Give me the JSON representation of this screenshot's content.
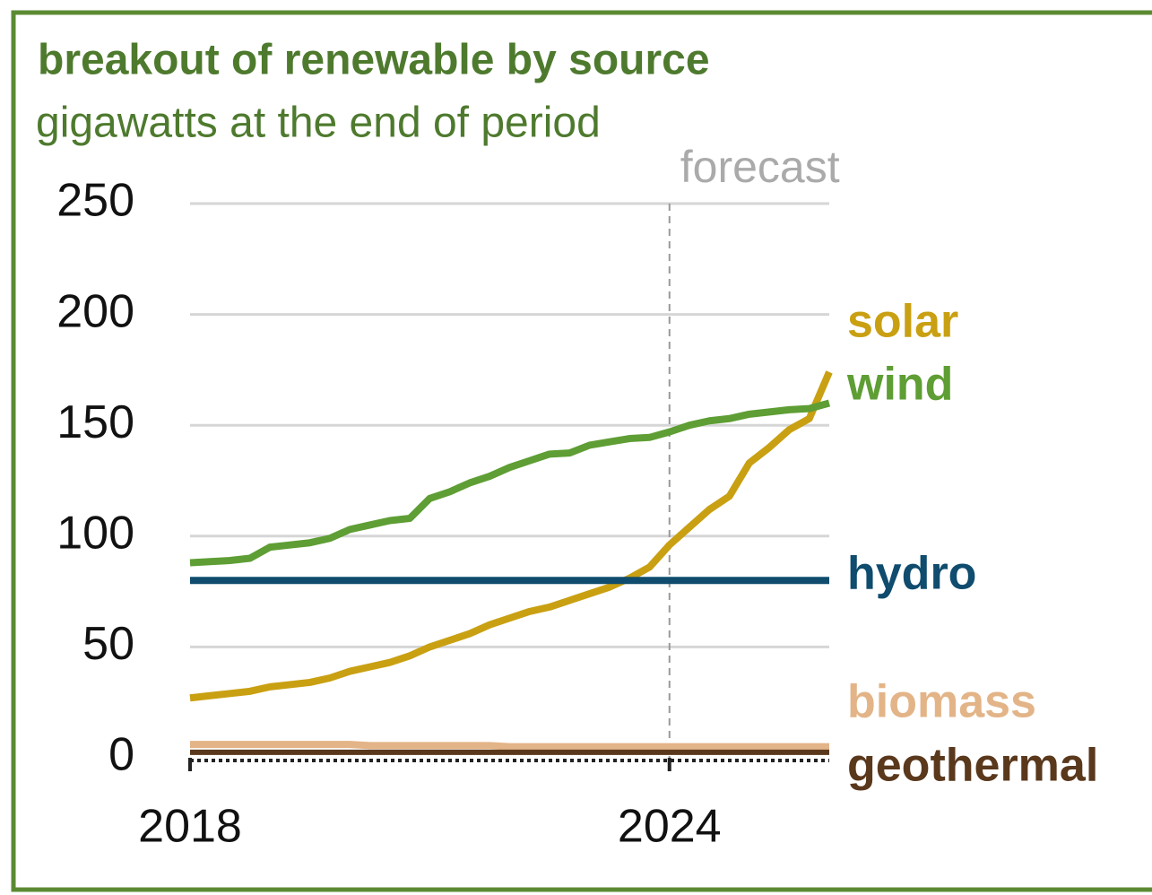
{
  "chart_data": {
    "type": "line",
    "title": "breakout of renewable by source",
    "subtitle": "gigawatts at the end of period",
    "forecast": {
      "label": "forecast",
      "x": 2024
    },
    "x": [
      2018,
      2018.25,
      2018.5,
      2018.75,
      2019,
      2019.25,
      2019.5,
      2019.75,
      2020,
      2020.25,
      2020.5,
      2020.75,
      2021,
      2021.25,
      2021.5,
      2021.75,
      2022,
      2022.25,
      2022.5,
      2022.75,
      2023,
      2023.25,
      2023.5,
      2023.75,
      2024,
      2024.25,
      2024.5,
      2024.75,
      2025,
      2025.25,
      2025.5,
      2025.75,
      2026
    ],
    "xlim": [
      2018,
      2026
    ],
    "xticks": [
      2018,
      2024
    ],
    "ylim": [
      0,
      250
    ],
    "yticks": [
      0,
      50,
      100,
      150,
      200,
      250
    ],
    "grid": true,
    "series": [
      {
        "name": "solar",
        "color": "#c9a012",
        "values": [
          27,
          28,
          29,
          30,
          32,
          33,
          34,
          36,
          39,
          41,
          43,
          46,
          50,
          53,
          56,
          60,
          63,
          66,
          68,
          71,
          74,
          77,
          81,
          86,
          96,
          104,
          112,
          118,
          133,
          140,
          148,
          153,
          174
        ]
      },
      {
        "name": "wind",
        "color": "#5e9e34",
        "values": [
          88,
          88.5,
          89,
          90,
          95,
          96,
          97,
          99,
          103,
          105,
          107,
          108,
          117,
          120,
          124,
          127,
          131,
          134,
          137,
          137.5,
          141,
          142.5,
          144,
          144.5,
          147,
          150,
          152,
          153,
          155,
          156,
          157,
          157.5,
          160
        ]
      },
      {
        "name": "hydro",
        "color": "#0f4c6e",
        "values": [
          80,
          80,
          80,
          80,
          80,
          80,
          80,
          80,
          80,
          80,
          80,
          80,
          80,
          80,
          80,
          80,
          80,
          80,
          80,
          80,
          80,
          80,
          80,
          80,
          80,
          80,
          80,
          80,
          80,
          80,
          80,
          80,
          80
        ]
      },
      {
        "name": "biomass",
        "color": "#e3b487",
        "values": [
          6,
          6,
          6,
          6,
          6,
          6,
          6,
          6,
          6,
          5.5,
          5.5,
          5.5,
          5.5,
          5.5,
          5.5,
          5.5,
          5,
          5,
          5,
          5,
          5,
          5,
          5,
          5,
          5,
          5,
          5,
          5,
          5,
          5,
          5,
          5,
          5
        ]
      },
      {
        "name": "geothermal",
        "color": "#5a381c",
        "values": [
          2.5,
          2.5,
          2.5,
          2.5,
          2.5,
          2.5,
          2.5,
          2.5,
          2.5,
          2.5,
          2.5,
          2.5,
          2.5,
          2.5,
          2.5,
          2.5,
          2.5,
          2.5,
          2.5,
          2.5,
          2.5,
          2.5,
          2.5,
          2.5,
          2.5,
          2.5,
          2.5,
          2.5,
          2.5,
          2.5,
          2.5,
          2.5,
          2.5
        ]
      }
    ]
  }
}
